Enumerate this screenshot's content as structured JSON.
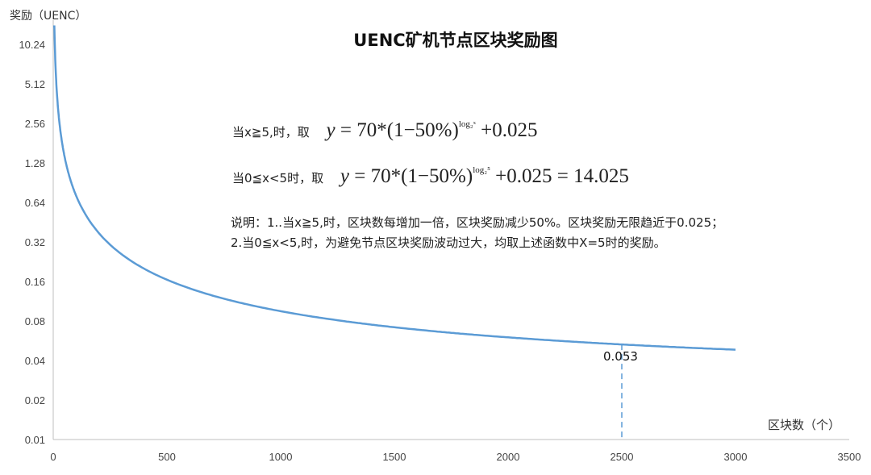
{
  "chart_data": {
    "type": "line",
    "title": "UENC矿机节点区块奖励图",
    "xlabel": "区块数（个）",
    "ylabel": "奖励（UENC）",
    "x_ticks": [
      "0",
      "500",
      "1000",
      "1500",
      "2000",
      "2500",
      "3000",
      "3500"
    ],
    "y_ticks": [
      "0.01",
      "0.02",
      "0.04",
      "0.08",
      "0.16",
      "0.32",
      "0.64",
      "1.28",
      "2.56",
      "5.12",
      "10.24"
    ],
    "y_scale": "log2",
    "xlim": [
      0,
      3500
    ],
    "ylim": [
      0.01,
      20.48
    ],
    "grid": false,
    "series": [
      {
        "name": "奖励",
        "function": "x<5 ? 14.025 : 70/x + 0.025",
        "x_range": [
          0,
          3000
        ],
        "color": "#5B9BD5"
      }
    ],
    "annotation": {
      "x": 2500,
      "y": 0.053,
      "label": "0.053"
    }
  },
  "formulas": {
    "line1_prefix": "当x≧5,时，取",
    "line1_y": "y",
    "line1_body": " = 70*(1−50%)",
    "line1_exp": "log₂ˣ",
    "line1_tail": " +0.025",
    "line2_prefix": "当0≦x<5时，取",
    "line2_y": "y",
    "line2_body": " = 70*(1−50%)",
    "line2_exp": "log₂⁵",
    "line2_tail": " +0.025 = 14.025"
  },
  "notes": {
    "line1": "说明：1..当x≧5,时，区块数每增加一倍，区块奖励减少50%。区块奖励无限趋近于0.025；",
    "line2": "2.当0≦x<5,时，为避免节点区块奖励波动过大，均取上述函数中X=5时的奖励。"
  }
}
